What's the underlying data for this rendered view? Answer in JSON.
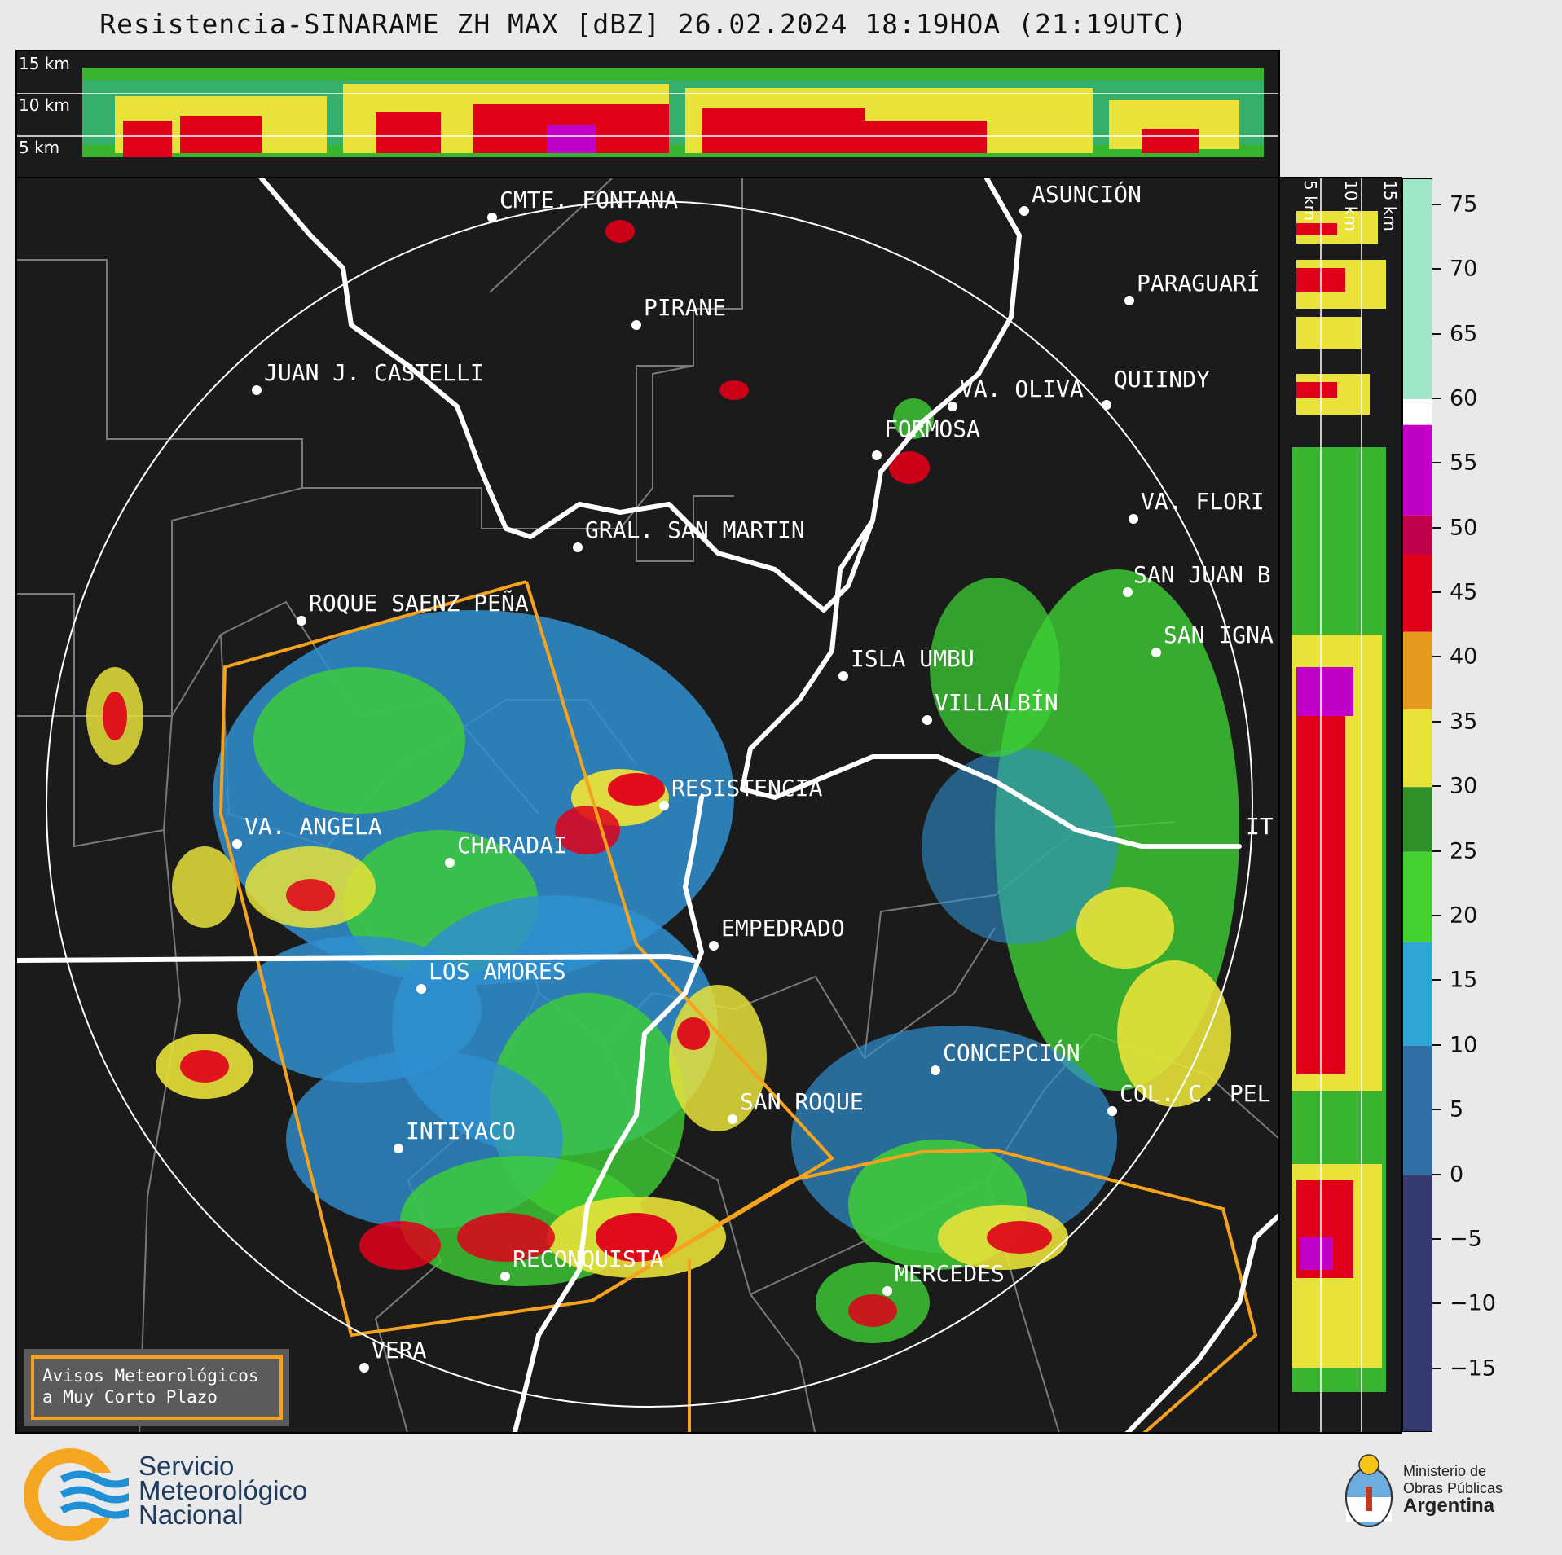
{
  "title": "Resistencia-SINARAME ZH MAX [dBZ] 26.02.2024 18:19HOA (21:19UTC)",
  "altitude_labels": [
    "15 km",
    "10 km",
    "5 km"
  ],
  "vertical_altitude_labels": [
    "5 km",
    "10 km",
    "15 km"
  ],
  "colorbar": {
    "unit": "dBZ",
    "ticks": [
      "75",
      "70",
      "65",
      "60",
      "55",
      "50",
      "45",
      "40",
      "35",
      "30",
      "25",
      "20",
      "15",
      "10",
      "5",
      "0",
      "−5",
      "−10",
      "−15"
    ],
    "bands": [
      {
        "from": 60,
        "to": 77,
        "color": "#9fe6c8"
      },
      {
        "from": 58,
        "to": 60,
        "color": "#ffffff"
      },
      {
        "from": 51,
        "to": 58,
        "color": "#c100c7"
      },
      {
        "from": 48,
        "to": 51,
        "color": "#c0004a"
      },
      {
        "from": 42,
        "to": 48,
        "color": "#e0001a"
      },
      {
        "from": 36,
        "to": 42,
        "color": "#e39a1f"
      },
      {
        "from": 30,
        "to": 36,
        "color": "#e8e23a"
      },
      {
        "from": 25,
        "to": 30,
        "color": "#2f8f28"
      },
      {
        "from": 18,
        "to": 25,
        "color": "#42d130"
      },
      {
        "from": 10,
        "to": 18,
        "color": "#2fa5d6"
      },
      {
        "from": 0,
        "to": 10,
        "color": "#2f6fa6"
      },
      {
        "from": -20,
        "to": 0,
        "color": "#353a6e"
      }
    ]
  },
  "cities": [
    {
      "name": "CMTE. FONTANA"
    },
    {
      "name": "ASUNCIÓN"
    },
    {
      "name": "PIRANE"
    },
    {
      "name": "PARAGUARÍ"
    },
    {
      "name": "JUAN J. CASTELLI"
    },
    {
      "name": "VA. OLIVA"
    },
    {
      "name": "QUIINDY"
    },
    {
      "name": "FORMOSA"
    },
    {
      "name": "VA. FLORI"
    },
    {
      "name": "GRAL. SAN MARTIN"
    },
    {
      "name": "SAN JUAN B"
    },
    {
      "name": "ROQUE SAENZ PEÑA"
    },
    {
      "name": "SAN IGNA"
    },
    {
      "name": "ISLA UMBU"
    },
    {
      "name": "VILLALBÍN"
    },
    {
      "name": "RESISTENCIA"
    },
    {
      "name": "IT"
    },
    {
      "name": "VA. ANGELA"
    },
    {
      "name": "CHARADAI"
    },
    {
      "name": "EMPEDRADO"
    },
    {
      "name": "LOS AMORES"
    },
    {
      "name": "CONCEPCIÓN"
    },
    {
      "name": "SAN ROQUE"
    },
    {
      "name": "COL. C. PEL"
    },
    {
      "name": "INTIYACO"
    },
    {
      "name": "RECONQUISTA"
    },
    {
      "name": "MERCEDES"
    },
    {
      "name": "VERA"
    }
  ],
  "notice": {
    "line1": "Avisos Meteorológicos",
    "line2": "a Muy Corto Plazo"
  },
  "footer": {
    "smn_line1": "Servicio",
    "smn_line2": "Meteorológico",
    "smn_line3": "Nacional",
    "min_line1": "Ministerio de",
    "min_line2": "Obras Públicas",
    "min_line3": "Argentina"
  },
  "colors": {
    "background": "#e9e9e9",
    "map_background": "#1b1b1b",
    "warning_polygon": "#f5a21c",
    "rivers": "#ffffff",
    "boundaries": "#7a7a7a"
  }
}
